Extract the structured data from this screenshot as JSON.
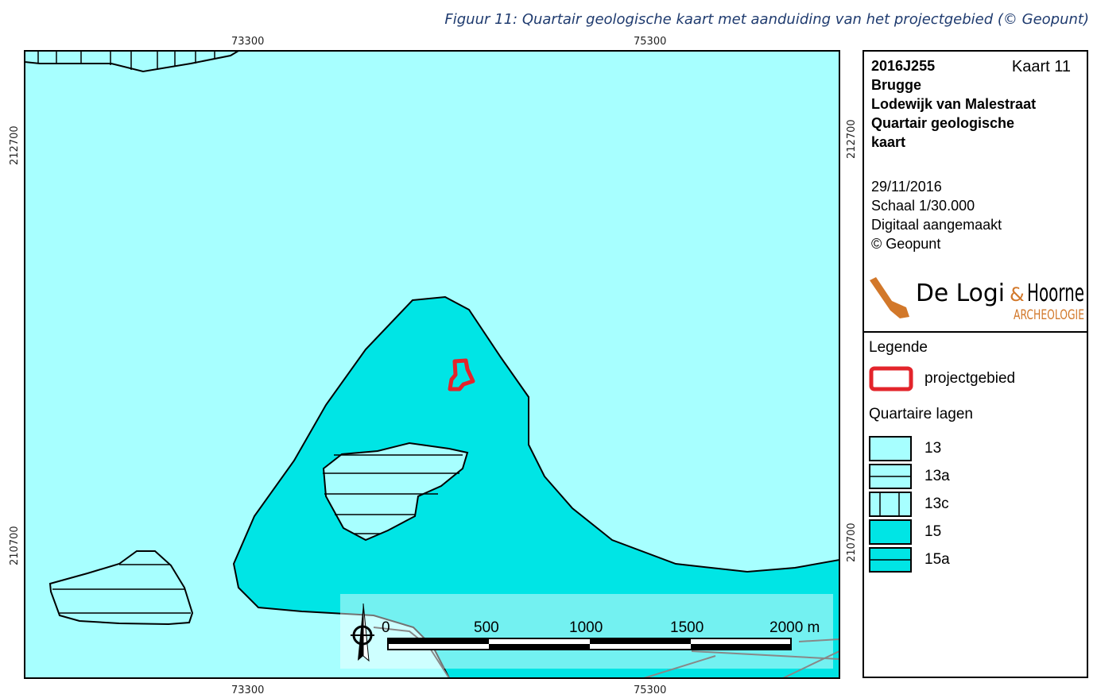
{
  "caption": "Figuur 11: Quartair geologische kaart met aanduiding van het projectgebied (© Geopunt)",
  "colors": {
    "unit_13": "#a7ffff",
    "unit_15": "#00e5e5",
    "project_outline": "#e3242b",
    "logo_orange": "#d2782a"
  },
  "coords": {
    "x_top_left": "73300",
    "x_top_right": "75300",
    "x_bottom_left": "73300",
    "x_bottom_right": "75300",
    "y_left_top": "212700",
    "y_left_bottom": "210700",
    "y_right_top": "212700",
    "y_right_bottom": "210700"
  },
  "scale_bar": {
    "labels": [
      "0",
      "500",
      "1000",
      "1500",
      "2000 m"
    ]
  },
  "panel": {
    "code": "2016J255",
    "map_number": "Kaart 11",
    "city": "Brugge",
    "street": "Lodewijk van Malestraat",
    "map_title_1": "Quartair geologische",
    "map_title_2": "kaart",
    "date": "29/11/2016",
    "scale": "Schaal 1/30.000",
    "made": "Digitaal aangemaakt",
    "source": "© Geopunt",
    "logo_text_1": "De Logi",
    "logo_amp": "&",
    "logo_text_2": "Hoorne",
    "logo_sub": "ARCHEOLOGIE"
  },
  "legend": {
    "title": "Legende",
    "project_label": "projectgebied",
    "layers_title": "Quartaire lagen",
    "items": [
      {
        "label": "13",
        "fill": "#a7ffff",
        "pattern": "none"
      },
      {
        "label": "13a",
        "fill": "#a7ffff",
        "pattern": "horizontal"
      },
      {
        "label": "13c",
        "fill": "#a7ffff",
        "pattern": "vertical"
      },
      {
        "label": "15",
        "fill": "#00e5e5",
        "pattern": "none"
      },
      {
        "label": "15a",
        "fill": "#00e5e5",
        "pattern": "horizontal"
      }
    ]
  }
}
